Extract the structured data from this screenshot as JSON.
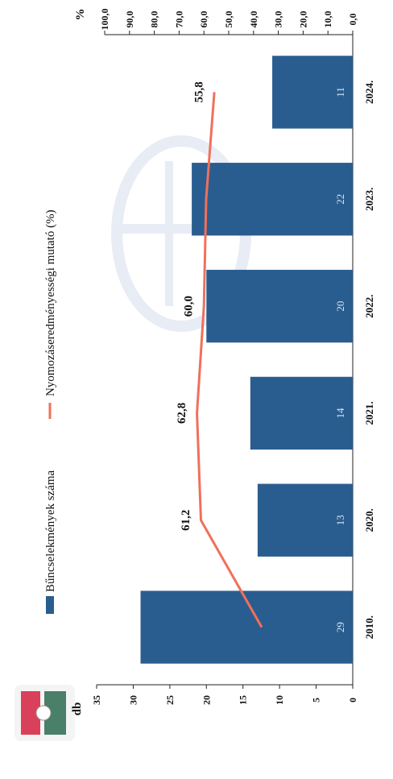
{
  "chart_data": {
    "type": "bar",
    "orientation": "rotated-90-clockwise",
    "categories": [
      "2010.",
      "2020.",
      "2021.",
      "2022.",
      "2023.",
      "2024."
    ],
    "series": [
      {
        "name": "Bűncselekmények száma",
        "kind": "bar",
        "axis": "left",
        "values": [
          29,
          13,
          14,
          20,
          22,
          11
        ],
        "labels": [
          "29",
          "13",
          "14",
          "20",
          "22",
          "11"
        ],
        "color": "#2a5d8f"
      },
      {
        "name": "Nyomozáseredményességi mutató (%)",
        "kind": "line",
        "axis": "right",
        "values": [
          36.7,
          61.2,
          62.8,
          60.0,
          59.1,
          55.8
        ],
        "labels": [
          "",
          "61,2",
          "62,8",
          "60,0",
          "",
          "55,8"
        ],
        "color": "#f0705a"
      }
    ],
    "left_axis": {
      "unit": "db",
      "ylim": [
        0,
        35
      ],
      "ticks": [
        0,
        5,
        10,
        15,
        20,
        25,
        30,
        35
      ],
      "tick_labels": [
        "0",
        "5",
        "10",
        "15",
        "20",
        "25",
        "30",
        "35"
      ]
    },
    "right_axis": {
      "unit": "%",
      "ylim": [
        0,
        100
      ],
      "ticks": [
        0,
        10,
        20,
        30,
        40,
        50,
        60,
        70,
        80,
        90,
        100
      ],
      "tick_labels": [
        "0,0",
        "10,0",
        "20,0",
        "30,0",
        "40,0",
        "50,0",
        "60,0",
        "70,0",
        "80,0",
        "90,0",
        "100,0"
      ]
    },
    "legend_position": "top",
    "grid": false,
    "title": ""
  }
}
